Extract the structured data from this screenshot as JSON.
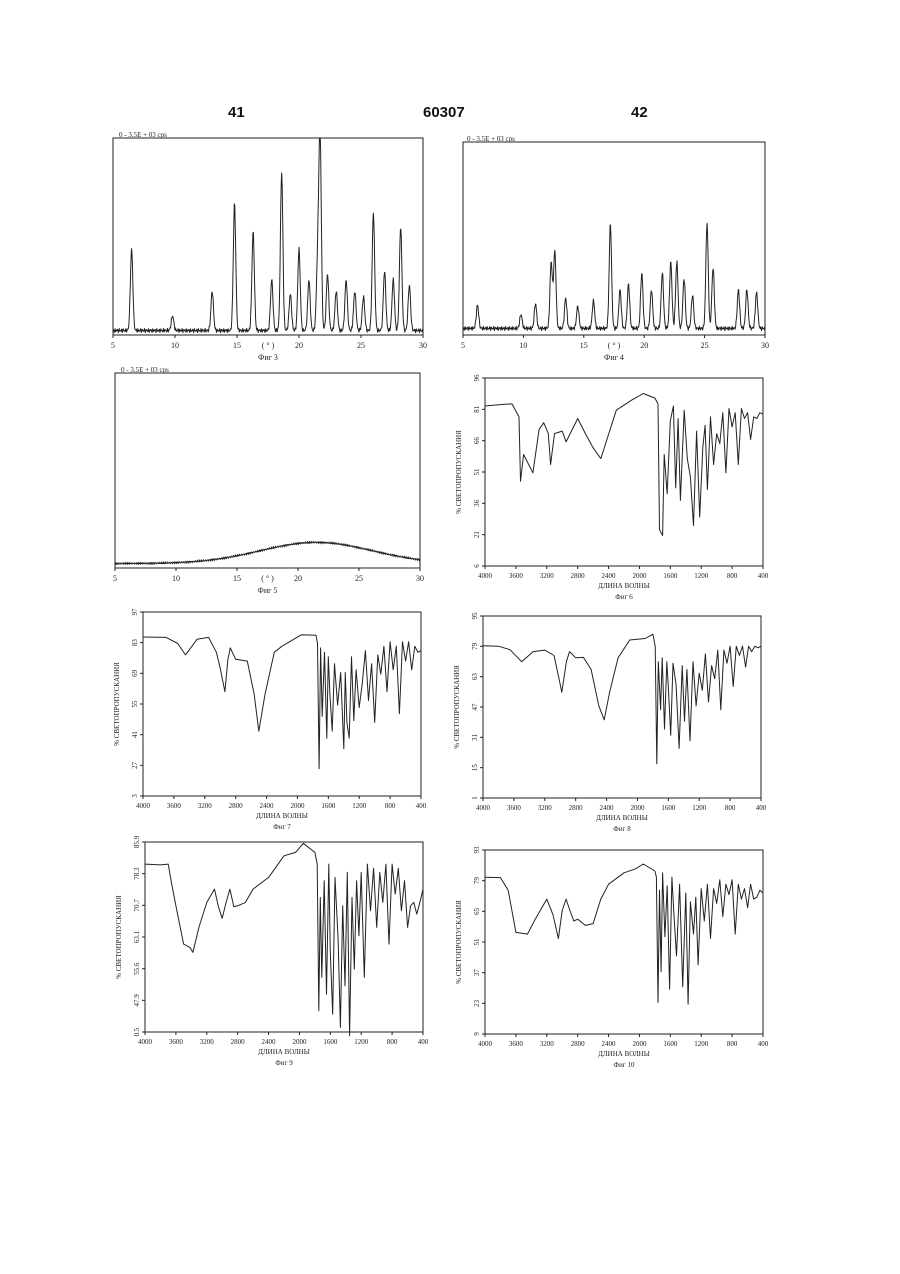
{
  "header": {
    "left": "41",
    "center": "60307",
    "right": "42"
  },
  "figures": [
    {
      "id": "fig3",
      "kind": "xrd",
      "scale_label": "0 - 3.5E + 03 cps",
      "caption": "Фиг 3",
      "axis_unit": "( ° )",
      "x_ticks": [
        "5",
        "10",
        "15",
        "20",
        "25",
        "30"
      ],
      "y_ticks": []
    },
    {
      "id": "fig4",
      "kind": "xrd",
      "scale_label": "0 - 3.5E + 03 cps",
      "caption": "Фиг 4",
      "axis_unit": "( ° )",
      "x_ticks": [
        "5",
        "10",
        "15",
        "20",
        "25",
        "30"
      ],
      "y_ticks": []
    },
    {
      "id": "fig5",
      "kind": "xrd",
      "scale_label": "0 - 3.5E + 03 cps",
      "caption": "Фиг 5",
      "axis_unit": "( ° )",
      "x_ticks": [
        "5",
        "10",
        "15",
        "20",
        "25",
        "30"
      ],
      "y_ticks": []
    },
    {
      "id": "fig6",
      "kind": "ir",
      "scale_label": "",
      "caption": "Фиг 6",
      "xlabel": "ДЛИНА ВОЛНЫ",
      "ylabel": "% СВЕТОПРОПУСКАНИЯ",
      "x_ticks": [
        "4000",
        "3600",
        "3200",
        "2800",
        "2400",
        "2000",
        "1600",
        "1200",
        "800",
        "400"
      ],
      "y_ticks": [
        "6",
        "21",
        "36",
        "51",
        "66",
        "81",
        "96"
      ]
    },
    {
      "id": "fig7",
      "kind": "ir",
      "scale_label": "",
      "caption": "Фиг 7",
      "xlabel": "ДЛИНА ВОЛНЫ",
      "ylabel": "% СВЕТОПРОПУСКАНИЯ",
      "x_ticks": [
        "4000",
        "3600",
        "3200",
        "2800",
        "2400",
        "2000",
        "1600",
        "1200",
        "800",
        "400"
      ],
      "y_ticks": [
        "3",
        "27",
        "41",
        "55",
        "69",
        "83",
        "97"
      ]
    },
    {
      "id": "fig8",
      "kind": "ir",
      "scale_label": "",
      "caption": "Фиг 8",
      "xlabel": "ДЛИНА ВОЛНЫ",
      "ylabel": "% СВЕТОПРОПУСКАНИЯ",
      "x_ticks": [
        "4000",
        "3600",
        "3200",
        "2800",
        "2400",
        "2000",
        "1600",
        "1200",
        "800",
        "400"
      ],
      "y_ticks": [
        "1",
        "15",
        "31",
        "47",
        "63",
        "79",
        "95"
      ]
    },
    {
      "id": "fig9",
      "kind": "ir",
      "scale_label": "",
      "caption": "Фиг 9",
      "xlabel": "ДЛИНА ВОЛНЫ",
      "ylabel": "% СВЕТОПРОПУСКАНИЯ",
      "x_ticks": [
        "4000",
        "3600",
        "3200",
        "2800",
        "2400",
        "2000",
        "1600",
        "1200",
        "800",
        "400"
      ],
      "y_ticks": [
        "0.5",
        "47.9",
        "55.6",
        "63.1",
        "70.7",
        "78.3",
        "85.9"
      ]
    },
    {
      "id": "fig10",
      "kind": "ir",
      "scale_label": "",
      "caption": "Фиг 10",
      "xlabel": "ДЛИНА ВОЛНЫ",
      "ylabel": "% СВЕТОПРОПУСКАНИЯ",
      "x_ticks": [
        "4000",
        "3600",
        "3200",
        "2800",
        "2400",
        "2000",
        "1600",
        "1200",
        "800",
        "400"
      ],
      "y_ticks": [
        "9",
        "23",
        "37",
        "51",
        "65",
        "79",
        "93"
      ]
    }
  ],
  "chart_data": [
    {
      "id": "fig3",
      "type": "line",
      "title": "",
      "xlabel": "( ° )",
      "ylabel": "",
      "xlim": [
        5,
        30
      ],
      "ylim": [
        0,
        3500
      ],
      "baseline": 80,
      "peaks": [
        [
          6.5,
          1450
        ],
        [
          9.8,
          260
        ],
        [
          13.0,
          700
        ],
        [
          14.8,
          2250
        ],
        [
          16.3,
          1750
        ],
        [
          17.8,
          900
        ],
        [
          18.6,
          2800
        ],
        [
          19.3,
          650
        ],
        [
          20.0,
          1450
        ],
        [
          20.8,
          900
        ],
        [
          21.5,
          1200
        ],
        [
          21.7,
          3500
        ],
        [
          22.3,
          1000
        ],
        [
          23.0,
          700
        ],
        [
          23.8,
          900
        ],
        [
          24.5,
          700
        ],
        [
          25.2,
          600
        ],
        [
          26.0,
          2100
        ],
        [
          26.9,
          1050
        ],
        [
          27.6,
          900
        ],
        [
          28.2,
          1850
        ],
        [
          28.9,
          800
        ]
      ]
    },
    {
      "id": "fig4",
      "type": "line",
      "title": "",
      "xlabel": "( ° )",
      "ylabel": "",
      "xlim": [
        5,
        30
      ],
      "ylim": [
        0,
        3500
      ],
      "baseline": 120,
      "peaks": [
        [
          6.2,
          420
        ],
        [
          9.8,
          250
        ],
        [
          11.0,
          450
        ],
        [
          12.3,
          1200
        ],
        [
          12.6,
          1400
        ],
        [
          13.5,
          550
        ],
        [
          14.5,
          400
        ],
        [
          15.8,
          500
        ],
        [
          17.2,
          1900
        ],
        [
          18.0,
          700
        ],
        [
          18.7,
          800
        ],
        [
          19.8,
          1000
        ],
        [
          20.6,
          700
        ],
        [
          21.5,
          1000
        ],
        [
          22.2,
          1200
        ],
        [
          22.7,
          1200
        ],
        [
          23.3,
          900
        ],
        [
          24.0,
          600
        ],
        [
          25.2,
          1900
        ],
        [
          25.7,
          1100
        ],
        [
          27.8,
          700
        ],
        [
          28.5,
          700
        ],
        [
          29.3,
          650
        ]
      ]
    },
    {
      "id": "fig5",
      "type": "line",
      "title": "",
      "xlabel": "( ° )",
      "ylabel": "",
      "xlim": [
        5,
        30
      ],
      "ylim": [
        0,
        3500
      ],
      "amorphous": {
        "start": 80,
        "center": 21.5,
        "height": 380,
        "width": 6.5
      }
    },
    {
      "id": "fig6",
      "type": "line",
      "title": "",
      "xlabel": "ДЛИНА ВОЛНЫ",
      "ylabel": "% СВЕТОПРОПУСКАНИЯ",
      "xlim": [
        4000,
        400
      ],
      "ylim": [
        6,
        96
      ],
      "x": [
        4000,
        3750,
        3650,
        3560,
        3540,
        3500,
        3380,
        3300,
        3240,
        3180,
        3150,
        3100,
        3000,
        2950,
        2800,
        2700,
        2600,
        2500,
        2300,
        2100,
        1950,
        1800,
        1760,
        1740,
        1700,
        1680,
        1640,
        1600,
        1560,
        1530,
        1500,
        1470,
        1420,
        1380,
        1340,
        1300,
        1260,
        1220,
        1180,
        1150,
        1120,
        1080,
        1040,
        1000,
        960,
        920,
        880,
        840,
        800,
        760,
        720,
        680,
        640,
        600,
        560,
        520,
        480,
        440,
        400
      ],
      "y": [
        82,
        84,
        83,
        78,
        46,
        60,
        50,
        72,
        74,
        70,
        54,
        70,
        70,
        66,
        76,
        70,
        62,
        58,
        80,
        86,
        88,
        87,
        83,
        24,
        20,
        60,
        40,
        76,
        82,
        44,
        76,
        38,
        80,
        58,
        48,
        26,
        70,
        30,
        62,
        74,
        42,
        78,
        54,
        70,
        64,
        80,
        50,
        82,
        72,
        80,
        54,
        82,
        76,
        80,
        66,
        78,
        76,
        80,
        78
      ]
    },
    {
      "id": "fig7",
      "type": "line",
      "title": "",
      "xlabel": "ДЛИНА ВОЛНЫ",
      "ylabel": "% СВЕТОПРОПУСКАНИЯ",
      "xlim": [
        4000,
        400
      ],
      "ylim": [
        13,
        97
      ],
      "x": [
        4000,
        3700,
        3550,
        3450,
        3300,
        3150,
        3050,
        3000,
        2940,
        2900,
        2870,
        2800,
        2650,
        2560,
        2500,
        2420,
        2300,
        2200,
        1950,
        1760,
        1740,
        1720,
        1700,
        1680,
        1650,
        1620,
        1600,
        1580,
        1550,
        1520,
        1480,
        1440,
        1400,
        1380,
        1360,
        1330,
        1300,
        1270,
        1240,
        1200,
        1160,
        1120,
        1080,
        1040,
        1000,
        960,
        920,
        880,
        840,
        800,
        760,
        720,
        680,
        640,
        600,
        560,
        520,
        480,
        440,
        400
      ],
      "y": [
        85,
        86,
        82,
        78,
        84,
        86,
        78,
        72,
        60,
        76,
        80,
        76,
        74,
        60,
        42,
        60,
        78,
        82,
        86,
        87,
        82,
        26,
        80,
        50,
        78,
        40,
        76,
        60,
        42,
        74,
        54,
        70,
        34,
        70,
        46,
        40,
        76,
        48,
        70,
        54,
        64,
        80,
        56,
        74,
        46,
        78,
        68,
        82,
        60,
        84,
        70,
        82,
        50,
        84,
        74,
        84,
        70,
        82,
        78,
        80
      ]
    },
    {
      "id": "fig8",
      "type": "line",
      "title": "",
      "xlabel": "ДЛИНА ВОЛНЫ",
      "ylabel": "% СВЕТОПРОПУСКАНИЯ",
      "xlim": [
        4000,
        400
      ],
      "ylim": [
        1,
        95
      ],
      "x": [
        4000,
        3800,
        3650,
        3500,
        3350,
        3200,
        3080,
        3020,
        2980,
        2920,
        2880,
        2800,
        2700,
        2600,
        2500,
        2430,
        2360,
        2250,
        2100,
        1900,
        1800,
        1770,
        1750,
        1730,
        1700,
        1680,
        1650,
        1620,
        1600,
        1570,
        1540,
        1500,
        1460,
        1420,
        1390,
        1360,
        1320,
        1280,
        1240,
        1200,
        1160,
        1120,
        1080,
        1040,
        1000,
        960,
        920,
        880,
        840,
        800,
        760,
        720,
        680,
        640,
        600,
        560,
        520,
        480,
        440,
        400
      ],
      "y": [
        79,
        80,
        77,
        72,
        76,
        78,
        74,
        64,
        55,
        72,
        76,
        74,
        73,
        68,
        48,
        42,
        55,
        74,
        82,
        84,
        85,
        80,
        18,
        72,
        46,
        74,
        36,
        72,
        58,
        34,
        70,
        60,
        26,
        70,
        40,
        68,
        30,
        72,
        48,
        66,
        56,
        76,
        50,
        70,
        62,
        78,
        46,
        78,
        70,
        80,
        58,
        80,
        74,
        80,
        68,
        80,
        76,
        80,
        78,
        80
      ]
    },
    {
      "id": "fig9",
      "type": "line",
      "title": "",
      "xlabel": "ДЛИНА ВОЛНЫ",
      "ylabel": "% СВЕТОПРОПУСКАНИЯ",
      "xlim": [
        4000,
        400
      ],
      "ylim": [
        40.3,
        85.9
      ],
      "x": [
        4000,
        3800,
        3700,
        3650,
        3600,
        3500,
        3420,
        3380,
        3300,
        3200,
        3100,
        3050,
        3000,
        2950,
        2900,
        2850,
        2800,
        2700,
        2600,
        2400,
        2200,
        2050,
        1950,
        1800,
        1770,
        1750,
        1730,
        1710,
        1680,
        1650,
        1620,
        1600,
        1570,
        1540,
        1500,
        1470,
        1440,
        1410,
        1380,
        1350,
        1320,
        1290,
        1260,
        1230,
        1200,
        1160,
        1120,
        1080,
        1040,
        1000,
        960,
        920,
        880,
        840,
        800,
        760,
        720,
        680,
        640,
        600,
        560,
        520,
        480,
        440,
        400
      ],
      "y": [
        80,
        81,
        80,
        76,
        70,
        62,
        60,
        60,
        65,
        72,
        74,
        71,
        67,
        72,
        74,
        71,
        70,
        72,
        74,
        78,
        82,
        84,
        85,
        84,
        80,
        46,
        72,
        54,
        76,
        50,
        80,
        60,
        44,
        78,
        62,
        42,
        70,
        52,
        78,
        40,
        72,
        56,
        76,
        64,
        78,
        54,
        80,
        70,
        79,
        66,
        78,
        72,
        80,
        62,
        80,
        74,
        79,
        70,
        76,
        66,
        70,
        72,
        68,
        72,
        74
      ]
    },
    {
      "id": "fig10",
      "type": "line",
      "title": "",
      "xlabel": "ДЛИНА ВОЛНЫ",
      "ylabel": "% СВЕТОПРОПУСКАНИЯ",
      "xlim": [
        4000,
        400
      ],
      "ylim": [
        9,
        93
      ],
      "x": [
        4000,
        3800,
        3700,
        3600,
        3450,
        3350,
        3200,
        3120,
        3050,
        3000,
        2950,
        2900,
        2850,
        2800,
        2700,
        2600,
        2500,
        2400,
        2200,
        2050,
        1950,
        1800,
        1780,
        1760,
        1740,
        1720,
        1700,
        1670,
        1640,
        1610,
        1580,
        1550,
        1520,
        1480,
        1440,
        1400,
        1370,
        1340,
        1300,
        1270,
        1240,
        1200,
        1160,
        1120,
        1080,
        1040,
        1000,
        960,
        920,
        880,
        840,
        800,
        760,
        720,
        680,
        640,
        600,
        560,
        520,
        480,
        440,
        400
      ],
      "y": [
        80,
        81,
        74,
        56,
        54,
        62,
        70,
        64,
        52,
        66,
        70,
        66,
        60,
        62,
        58,
        60,
        70,
        78,
        82,
        85,
        86,
        84,
        80,
        24,
        74,
        38,
        82,
        54,
        76,
        30,
        80,
        62,
        44,
        78,
        30,
        74,
        22,
        70,
        54,
        72,
        40,
        76,
        60,
        78,
        52,
        76,
        68,
        80,
        62,
        78,
        72,
        80,
        54,
        78,
        70,
        76,
        66,
        78,
        70,
        72,
        74,
        74
      ]
    }
  ]
}
